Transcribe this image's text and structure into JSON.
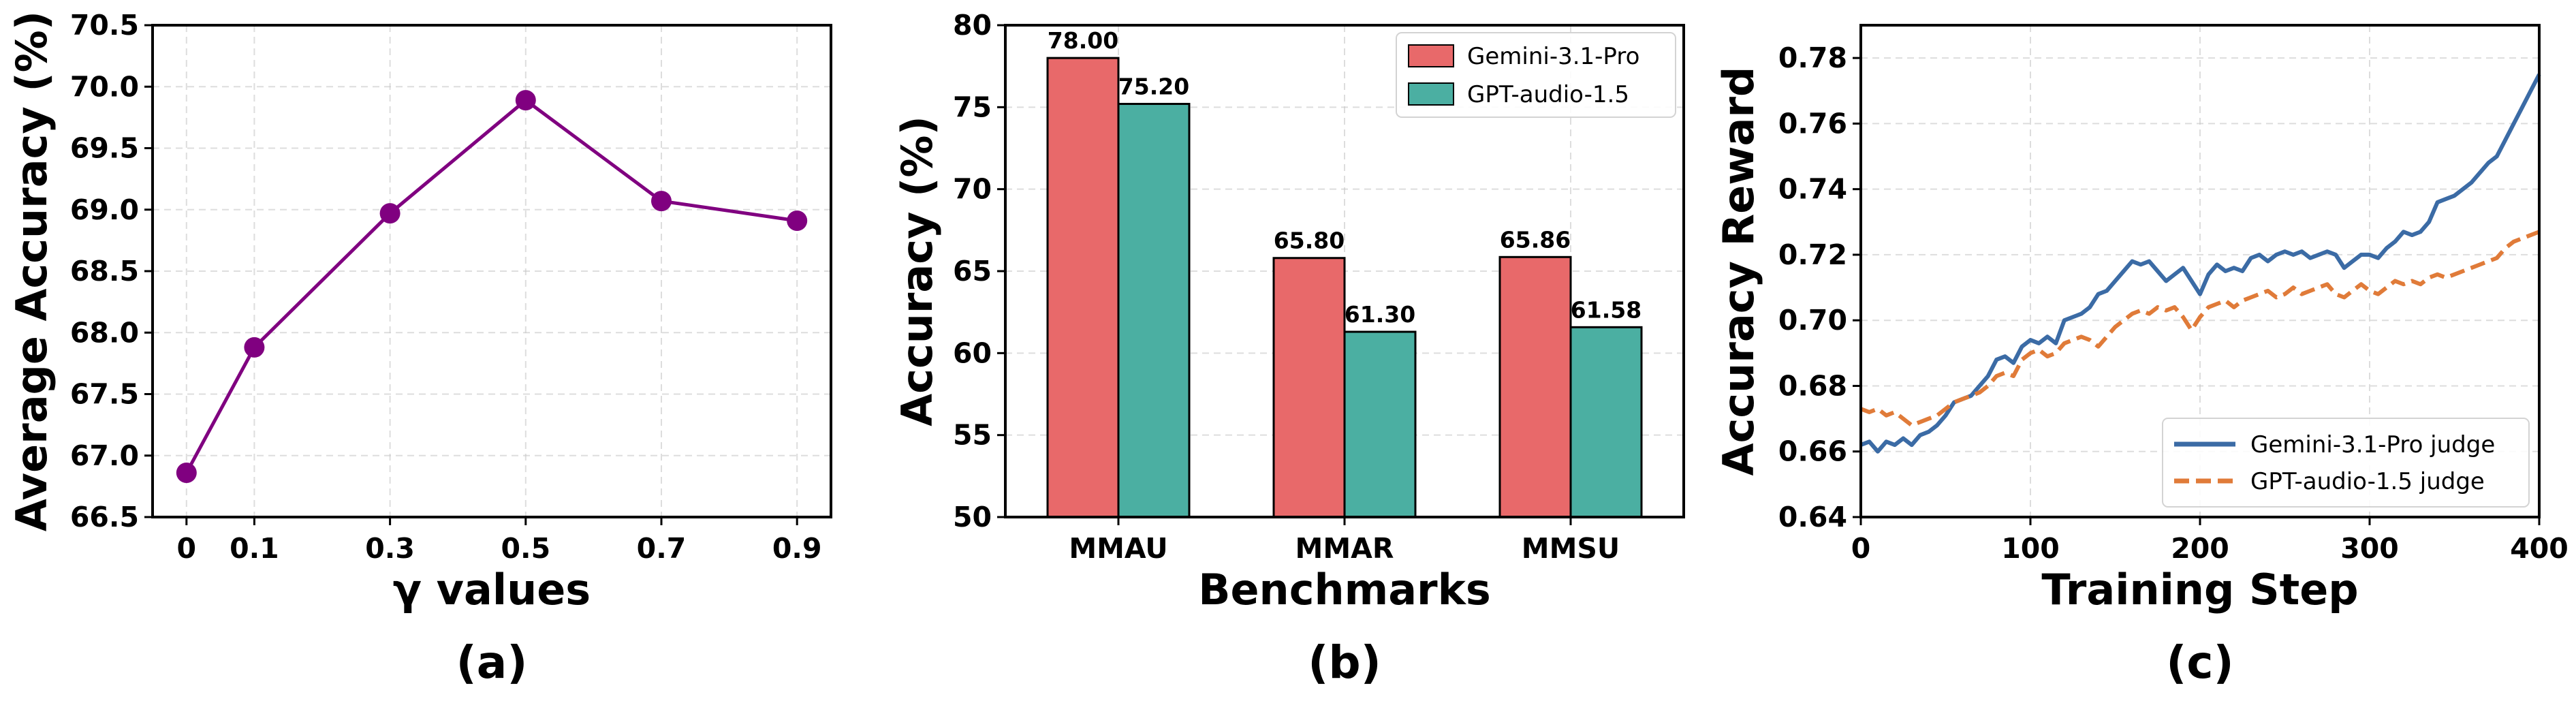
{
  "chart_data": [
    {
      "type": "line",
      "panel_label": "(a)",
      "xlabel": "γ values",
      "ylabel": "Average Accuracy (%)",
      "x": [
        0,
        0.1,
        0.3,
        0.5,
        0.7,
        0.9
      ],
      "x_tick_labels": [
        "0",
        "0.1",
        "0.3",
        "0.5",
        "0.7",
        "0.9"
      ],
      "ylim": [
        66.5,
        70.5
      ],
      "y_ticks": [
        "66.5",
        "67.0",
        "67.5",
        "68.0",
        "68.5",
        "69.0",
        "69.5",
        "70.0",
        "70.5"
      ],
      "series": [
        {
          "values": [
            66.86,
            67.88,
            68.97,
            69.89,
            69.07,
            68.91
          ],
          "color": "#800080"
        }
      ],
      "grid": true
    },
    {
      "type": "bar",
      "panel_label": "(b)",
      "xlabel": "Benchmarks",
      "ylabel": "Accuracy (%)",
      "categories": [
        "MMAU",
        "MMAR",
        "MMSU"
      ],
      "ylim": [
        50,
        80
      ],
      "y_ticks": [
        "50",
        "55",
        "60",
        "65",
        "70",
        "75",
        "80"
      ],
      "series": [
        {
          "name": "Gemini-3.1-Pro",
          "values": [
            78.0,
            65.8,
            65.86
          ],
          "labels": [
            "78.00",
            "65.80",
            "65.86"
          ],
          "color": "#e8696a"
        },
        {
          "name": "GPT-audio-1.5",
          "values": [
            75.2,
            61.3,
            61.58
          ],
          "labels": [
            "75.20",
            "61.30",
            "61.58"
          ],
          "color": "#4bafa2"
        }
      ],
      "legend_position": "top-right",
      "grid": true
    },
    {
      "type": "line",
      "panel_label": "(c)",
      "xlabel": "Training Step",
      "ylabel": "Accuracy Reward",
      "xlim": [
        0,
        400
      ],
      "ylim": [
        0.64,
        0.79
      ],
      "x_ticks": [
        "0",
        "100",
        "200",
        "300",
        "400"
      ],
      "y_ticks": [
        "0.64",
        "0.66",
        "0.68",
        "0.70",
        "0.72",
        "0.74",
        "0.76",
        "0.78"
      ],
      "series": [
        {
          "name": "Gemini-3.1-Pro judge",
          "color": "#3b6ba5",
          "style": "solid",
          "x": [
            0,
            5,
            10,
            15,
            20,
            25,
            30,
            35,
            40,
            45,
            50,
            55,
            60,
            65,
            70,
            75,
            80,
            85,
            90,
            95,
            100,
            105,
            110,
            115,
            120,
            125,
            130,
            135,
            140,
            145,
            150,
            155,
            160,
            165,
            170,
            175,
            180,
            185,
            190,
            195,
            200,
            205,
            210,
            215,
            220,
            225,
            230,
            235,
            240,
            245,
            250,
            255,
            260,
            265,
            270,
            275,
            280,
            285,
            290,
            295,
            300,
            305,
            310,
            315,
            320,
            325,
            330,
            335,
            340,
            345,
            350,
            355,
            360,
            365,
            370,
            375,
            380,
            385,
            390,
            395,
            400
          ],
          "values": [
            0.662,
            0.663,
            0.66,
            0.663,
            0.662,
            0.664,
            0.662,
            0.665,
            0.666,
            0.668,
            0.671,
            0.675,
            0.676,
            0.677,
            0.68,
            0.683,
            0.688,
            0.689,
            0.687,
            0.692,
            0.694,
            0.693,
            0.695,
            0.693,
            0.7,
            0.701,
            0.702,
            0.704,
            0.708,
            0.709,
            0.712,
            0.715,
            0.718,
            0.717,
            0.718,
            0.715,
            0.712,
            0.714,
            0.716,
            0.712,
            0.708,
            0.714,
            0.717,
            0.715,
            0.716,
            0.715,
            0.719,
            0.72,
            0.718,
            0.72,
            0.721,
            0.72,
            0.721,
            0.719,
            0.72,
            0.721,
            0.72,
            0.716,
            0.718,
            0.72,
            0.72,
            0.719,
            0.722,
            0.724,
            0.727,
            0.726,
            0.727,
            0.73,
            0.736,
            0.737,
            0.738,
            0.74,
            0.742,
            0.745,
            0.748,
            0.75,
            0.755,
            0.76,
            0.765,
            0.77,
            0.775
          ]
        },
        {
          "name": "GPT-audio-1.5 judge",
          "color": "#e07b39",
          "style": "dashed",
          "x": [
            0,
            5,
            10,
            15,
            20,
            25,
            30,
            35,
            40,
            45,
            50,
            55,
            60,
            65,
            70,
            75,
            80,
            85,
            90,
            95,
            100,
            105,
            110,
            115,
            120,
            125,
            130,
            135,
            140,
            145,
            150,
            155,
            160,
            165,
            170,
            175,
            180,
            185,
            190,
            195,
            200,
            205,
            210,
            215,
            220,
            225,
            230,
            235,
            240,
            245,
            250,
            255,
            260,
            265,
            270,
            275,
            280,
            285,
            290,
            295,
            300,
            305,
            310,
            315,
            320,
            325,
            330,
            335,
            340,
            345,
            350,
            355,
            360,
            365,
            370,
            375,
            380,
            385,
            390,
            395,
            400
          ],
          "values": [
            0.673,
            0.672,
            0.673,
            0.671,
            0.672,
            0.67,
            0.668,
            0.669,
            0.67,
            0.671,
            0.673,
            0.675,
            0.676,
            0.677,
            0.678,
            0.68,
            0.683,
            0.684,
            0.683,
            0.688,
            0.69,
            0.691,
            0.689,
            0.69,
            0.693,
            0.694,
            0.695,
            0.694,
            0.692,
            0.695,
            0.698,
            0.7,
            0.702,
            0.703,
            0.702,
            0.704,
            0.703,
            0.704,
            0.701,
            0.697,
            0.701,
            0.704,
            0.705,
            0.706,
            0.704,
            0.706,
            0.707,
            0.708,
            0.709,
            0.707,
            0.708,
            0.71,
            0.708,
            0.709,
            0.71,
            0.711,
            0.708,
            0.707,
            0.709,
            0.711,
            0.709,
            0.708,
            0.71,
            0.712,
            0.711,
            0.712,
            0.711,
            0.713,
            0.714,
            0.713,
            0.714,
            0.715,
            0.716,
            0.717,
            0.718,
            0.719,
            0.722,
            0.724,
            0.725,
            0.726,
            0.727
          ]
        }
      ],
      "legend_position": "bottom-right",
      "grid": true
    }
  ]
}
